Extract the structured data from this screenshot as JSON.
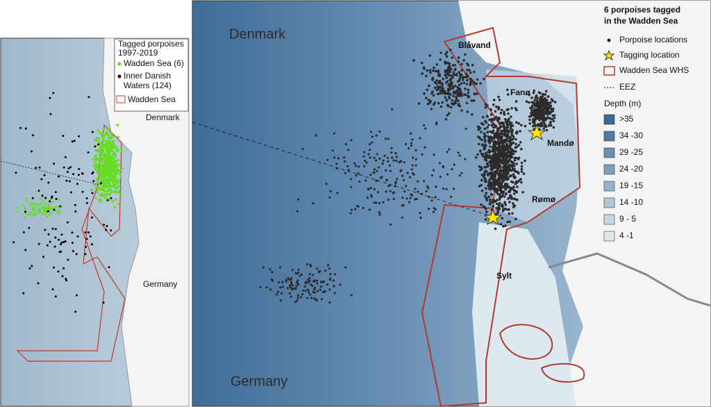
{
  "left_map": {
    "legend": {
      "title_lines": [
        "Tagged porpoises",
        "1997-2019"
      ],
      "items": [
        [
          "Wadden Sea (6)"
        ],
        [
          "Inner Danish",
          "Waters (124)"
        ],
        [
          "Wadden Sea"
        ]
      ]
    },
    "labels": [
      "Denmark",
      "Germany"
    ]
  },
  "right_map": {
    "labels": [
      "Denmark",
      "Germany",
      "Blåvand",
      "Fanø",
      "Mandø",
      "Rømø",
      "Sylt"
    ],
    "legend": {
      "title_lines": [
        "6 porpoises tagged",
        "in the Wadden Sea"
      ],
      "items": [
        "Porpoise locations",
        "Tagging location",
        "Wadden Sea WHS",
        "EEZ"
      ],
      "depth_title": "Depth (m)",
      "depth_classes": [
        ">35",
        "34 -30",
        "29 -25",
        "24 -20",
        "19 -15",
        "14 -10",
        "9 - 5",
        "4 -1"
      ]
    }
  }
}
